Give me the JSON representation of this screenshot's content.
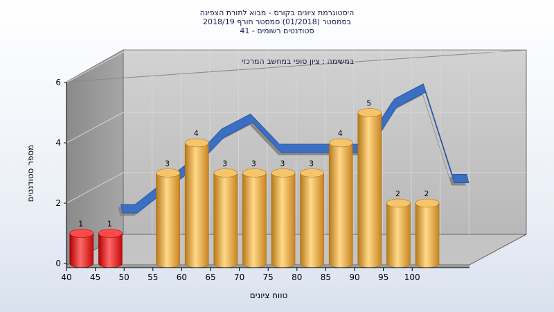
{
  "chart_data": {
    "type": "bar",
    "title_lines": [
      "היסטוגרמת ציונים בקורס - מבוא לתורת הצפינה",
      "בסמסטר (01/2018) סמסטר חורף 2018/19",
      "סטודנטים רשומים - 41"
    ],
    "annotation": "במשימה : ציון סופי במחשב המרכזי",
    "xlabel": "טווח ציונים",
    "ylabel": "מספר סטודנטים",
    "x_ticks": [
      "40",
      "45",
      "50",
      "55",
      "60",
      "65",
      "70",
      "75",
      "80",
      "85",
      "90",
      "95",
      "100"
    ],
    "y_ticks": [
      "0",
      "2",
      "4",
      "6"
    ],
    "ylim": [
      0,
      6
    ],
    "grid": true,
    "bars": [
      {
        "x": 42.5,
        "value": 1,
        "label": "1",
        "color": "#e01818"
      },
      {
        "x": 47.5,
        "value": 1,
        "label": "1",
        "color": "#e01818"
      },
      {
        "x": 57.5,
        "value": 3,
        "label": "3",
        "color": "#e8a63c"
      },
      {
        "x": 62.5,
        "value": 4,
        "label": "4",
        "color": "#e8a63c"
      },
      {
        "x": 67.5,
        "value": 3,
        "label": "3",
        "color": "#e8a63c"
      },
      {
        "x": 72.5,
        "value": 3,
        "label": "3",
        "color": "#e8a63c"
      },
      {
        "x": 77.5,
        "value": 3,
        "label": "3",
        "color": "#e8a63c"
      },
      {
        "x": 82.5,
        "value": 3,
        "label": "3",
        "color": "#e8a63c"
      },
      {
        "x": 87.5,
        "value": 4,
        "label": "4",
        "color": "#e8a63c"
      },
      {
        "x": 92.5,
        "value": 5,
        "label": "5",
        "color": "#e8a63c"
      },
      {
        "x": 97.5,
        "value": 2,
        "label": "2",
        "color": "#e8a63c"
      },
      {
        "x": 102.5,
        "value": 2,
        "label": "2",
        "color": "#e8a63c"
      }
    ],
    "trend_line": {
      "color": "#3a6fc4",
      "points": [
        [
          45,
          1.5
        ],
        [
          47.5,
          1.5
        ],
        [
          57.5,
          3
        ],
        [
          62.5,
          4
        ],
        [
          67.5,
          4.5
        ],
        [
          72.5,
          3.5
        ],
        [
          77.5,
          3.5
        ],
        [
          82.5,
          3.5
        ],
        [
          87.5,
          3.5
        ],
        [
          92.5,
          5
        ],
        [
          97.5,
          5.5
        ],
        [
          102.5,
          2.5
        ],
        [
          105,
          2.5
        ]
      ]
    }
  }
}
